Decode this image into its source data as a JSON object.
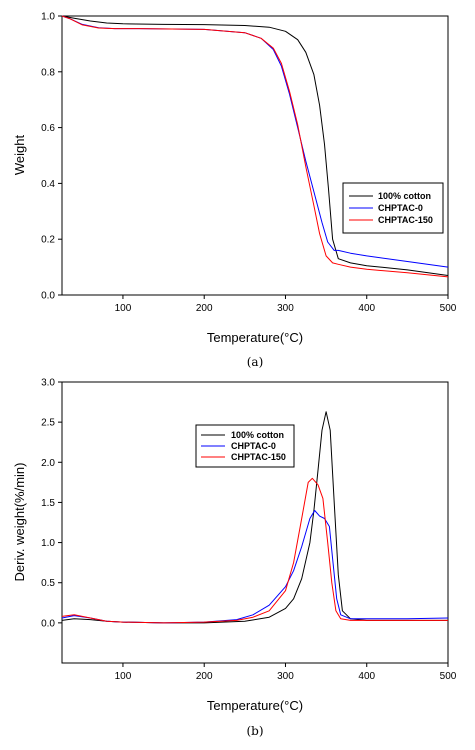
{
  "chart_data": [
    {
      "type": "line",
      "xlabel": "Temperature(°C)",
      "ylabel": "Weight",
      "caption": "(a)",
      "xlim": [
        25,
        500
      ],
      "ylim": [
        0,
        1.0
      ],
      "xticks": [
        100,
        200,
        300,
        400,
        500
      ],
      "yticks": [
        0.0,
        0.2,
        0.4,
        0.6,
        0.8,
        1.0
      ],
      "xtick_labels": [
        "100",
        "200",
        "300",
        "400",
        "500"
      ],
      "ytick_labels": [
        "0.0",
        "0.2",
        "0.4",
        "0.6",
        "0.8",
        "1.0"
      ],
      "legend_position": "right",
      "series": [
        {
          "name": "100% cotton",
          "color": "#000000",
          "x": [
            25,
            40,
            60,
            80,
            100,
            150,
            200,
            250,
            280,
            300,
            315,
            325,
            335,
            342,
            348,
            353,
            358,
            365,
            380,
            400,
            450,
            500
          ],
          "y": [
            1.0,
            0.992,
            0.982,
            0.975,
            0.972,
            0.97,
            0.969,
            0.966,
            0.96,
            0.945,
            0.915,
            0.87,
            0.79,
            0.68,
            0.54,
            0.38,
            0.2,
            0.13,
            0.115,
            0.105,
            0.09,
            0.07
          ]
        },
        {
          "name": "CHPTAC-0",
          "color": "#0000ff",
          "x": [
            25,
            35,
            50,
            70,
            90,
            120,
            200,
            250,
            270,
            285,
            295,
            305,
            315,
            325,
            335,
            345,
            352,
            360,
            365,
            380,
            400,
            450,
            500
          ],
          "y": [
            1.0,
            0.99,
            0.97,
            0.958,
            0.955,
            0.955,
            0.952,
            0.94,
            0.92,
            0.88,
            0.82,
            0.72,
            0.6,
            0.48,
            0.37,
            0.26,
            0.19,
            0.16,
            0.16,
            0.15,
            0.14,
            0.12,
            0.1
          ]
        },
        {
          "name": "CHPTAC-150",
          "color": "#ff0000",
          "x": [
            25,
            35,
            50,
            70,
            90,
            120,
            200,
            250,
            270,
            285,
            295,
            305,
            315,
            325,
            335,
            342,
            350,
            358,
            365,
            380,
            400,
            450,
            500
          ],
          "y": [
            1.0,
            0.99,
            0.968,
            0.957,
            0.955,
            0.955,
            0.952,
            0.94,
            0.92,
            0.885,
            0.83,
            0.73,
            0.61,
            0.46,
            0.32,
            0.22,
            0.14,
            0.115,
            0.11,
            0.1,
            0.092,
            0.08,
            0.065
          ]
        }
      ]
    },
    {
      "type": "line",
      "xlabel": "Temperature(°C)",
      "ylabel": "Deriv. weight(%/min)",
      "caption": "(b)",
      "xlim": [
        25,
        500
      ],
      "ylim": [
        -0.5,
        3.0
      ],
      "xticks": [
        100,
        200,
        300,
        400,
        500
      ],
      "yticks": [
        0.0,
        0.5,
        1.0,
        1.5,
        2.0,
        2.5,
        3.0
      ],
      "xtick_labels": [
        "100",
        "200",
        "300",
        "400",
        "500"
      ],
      "ytick_labels": [
        "0.0",
        "0.5",
        "1.0",
        "1.5",
        "2.0",
        "2.5",
        "3.0"
      ],
      "legend_position": "top-center",
      "series": [
        {
          "name": "100% cotton",
          "color": "#000000",
          "x": [
            25,
            40,
            60,
            80,
            100,
            150,
            200,
            250,
            280,
            300,
            310,
            320,
            330,
            335,
            340,
            345,
            350,
            355,
            360,
            365,
            370,
            380,
            400,
            450,
            500
          ],
          "y": [
            0.03,
            0.05,
            0.04,
            0.02,
            0.01,
            0.0,
            0.0,
            0.02,
            0.07,
            0.18,
            0.3,
            0.55,
            1.0,
            1.4,
            1.9,
            2.4,
            2.63,
            2.4,
            1.5,
            0.6,
            0.15,
            0.05,
            0.03,
            0.03,
            0.03
          ]
        },
        {
          "name": "CHPTAC-0",
          "color": "#0000ff",
          "x": [
            25,
            40,
            60,
            80,
            100,
            150,
            200,
            240,
            260,
            280,
            300,
            310,
            320,
            330,
            336,
            342,
            348,
            354,
            358,
            363,
            368,
            380,
            400,
            450,
            500
          ],
          "y": [
            0.06,
            0.09,
            0.06,
            0.02,
            0.01,
            0.0,
            0.01,
            0.04,
            0.1,
            0.22,
            0.45,
            0.65,
            0.95,
            1.3,
            1.4,
            1.33,
            1.3,
            1.2,
            0.8,
            0.3,
            0.1,
            0.05,
            0.05,
            0.05,
            0.06
          ]
        },
        {
          "name": "CHPTAC-150",
          "color": "#ff0000",
          "x": [
            25,
            40,
            60,
            80,
            100,
            150,
            200,
            240,
            260,
            280,
            300,
            310,
            320,
            328,
            333,
            340,
            346,
            352,
            357,
            362,
            368,
            380,
            400,
            450,
            500
          ],
          "y": [
            0.08,
            0.1,
            0.06,
            0.02,
            0.01,
            0.0,
            0.01,
            0.03,
            0.07,
            0.15,
            0.4,
            0.75,
            1.3,
            1.75,
            1.8,
            1.72,
            1.55,
            1.0,
            0.5,
            0.15,
            0.05,
            0.03,
            0.03,
            0.03,
            0.03
          ]
        }
      ]
    }
  ]
}
